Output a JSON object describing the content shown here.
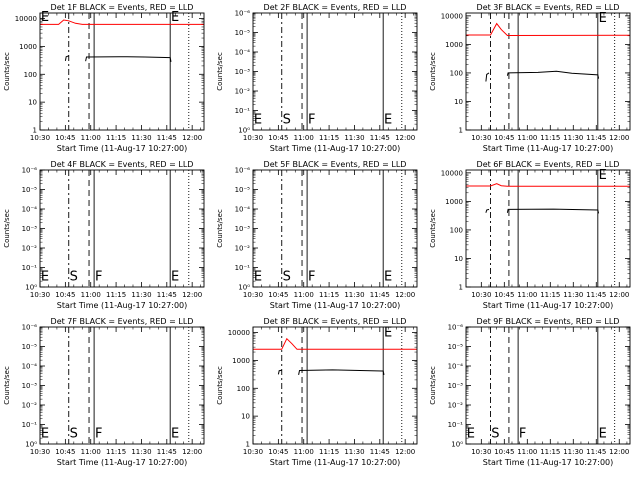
{
  "chart_data": [
    {
      "type": "line",
      "title": "Det 1F BLACK = Events, RED = LLD",
      "ylabel": "Counts/sec",
      "xlabel": "Start Time (11-Aug-17 10:27:00)",
      "x_ticks": [
        "10:30",
        "10:45",
        "11:00",
        "11:15",
        "11:30",
        "11:45",
        "12:00"
      ],
      "x_range_min": [
        3,
        100
      ],
      "y_log": true,
      "y_ticks": [
        "1",
        "10",
        "100",
        "1000",
        "10000"
      ],
      "y_range_exp": [
        0,
        4.2
      ],
      "markers": [
        {
          "type": "dashdot",
          "t": 20
        },
        {
          "type": "dashed",
          "t": 32
        },
        {
          "type": "solid",
          "t": 35
        },
        {
          "type": "solid",
          "t": 80
        },
        {
          "type": "dotted",
          "t": 91
        }
      ],
      "marker_labels": [
        {
          "text": "E",
          "t": 3.5,
          "exp": 4.05
        },
        {
          "text": "E",
          "t": 80.5,
          "exp": 4.05
        }
      ],
      "series": [
        {
          "color": "#ff0000",
          "points": [
            [
              3,
              3.79
            ],
            [
              14,
              3.79
            ],
            [
              17,
              3.95
            ],
            [
              20,
              3.92
            ],
            [
              24,
              3.83
            ],
            [
              28,
              3.79
            ],
            [
              35,
              3.79
            ],
            [
              100,
              3.79
            ]
          ]
        },
        {
          "color": "#000000",
          "segments": [
            [
              [
                18,
                2.48
              ],
              [
                18.5,
                2.63
              ],
              [
                20,
                2.66
              ]
            ],
            [
              [
                30,
                2.47
              ],
              [
                30.5,
                2.62
              ],
              [
                50,
                2.63
              ],
              [
                65,
                2.62
              ],
              [
                80,
                2.6
              ],
              [
                80.5,
                2.45
              ]
            ]
          ]
        }
      ]
    },
    {
      "type": "line",
      "title": "Det 2F BLACK = Events, RED = LLD",
      "ylabel": "Counts/sec",
      "xlabel": "Start Time (11-Aug-17 10:27:00)",
      "x_ticks": [
        "10:30",
        "10:45",
        "11:00",
        "11:15",
        "11:30",
        "11:45",
        "12:00"
      ],
      "x_range_min": [
        3,
        100
      ],
      "y_log": true,
      "y_ticks": [
        "10⁰",
        "10⁻¹",
        "10⁻²",
        "10⁻³",
        "10⁻⁴",
        "10⁻⁵",
        "10⁻⁶"
      ],
      "y_range_exp": [
        0,
        6
      ],
      "markers": [
        {
          "type": "dashdot",
          "t": 20
        },
        {
          "type": "dashed",
          "t": 32
        },
        {
          "type": "solid",
          "t": 35
        },
        {
          "type": "solid",
          "t": 80
        },
        {
          "type": "dotted",
          "t": 91
        }
      ],
      "marker_labels": [
        {
          "text": "E",
          "t": 3.5,
          "exp": 0.55
        },
        {
          "text": "S",
          "t": 20.5,
          "exp": 0.55
        },
        {
          "text": "F",
          "t": 35.5,
          "exp": 0.55
        },
        {
          "text": "E",
          "t": 80.5,
          "exp": 0.55
        }
      ],
      "series": []
    },
    {
      "type": "line",
      "title": "Det 3F BLACK = Events, RED = LLD",
      "ylabel": "Counts/sec",
      "xlabel": "Start Time (11-Aug-17 10:27:00)",
      "x_ticks": [
        "10:30",
        "10:45",
        "11:00",
        "11:15",
        "11:30",
        "11:45",
        "12:00"
      ],
      "x_range_min": [
        -7,
        100
      ],
      "y_log": true,
      "y_ticks": [
        "1",
        "10",
        "100",
        "1000",
        "10000"
      ],
      "y_range_exp": [
        0,
        4.1
      ],
      "markers": [
        {
          "type": "dashdot",
          "t": 9
        },
        {
          "type": "dashed",
          "t": 21
        },
        {
          "type": "solid",
          "t": 27
        },
        {
          "type": "solid",
          "t": 79
        },
        {
          "type": "dotted",
          "t": 90
        }
      ],
      "marker_labels": [
        {
          "text": "E",
          "t": 79.5,
          "exp": 3.92
        }
      ],
      "series": [
        {
          "color": "#ff0000",
          "points": [
            [
              -7,
              3.33
            ],
            [
              9,
              3.33
            ],
            [
              13,
              3.73
            ],
            [
              16,
              3.52
            ],
            [
              20,
              3.31
            ],
            [
              100,
              3.32
            ]
          ]
        },
        {
          "color": "#000000",
          "segments": [
            [
              [
                6,
                1.7
              ],
              [
                6.5,
                1.95
              ],
              [
                8,
                2.0
              ]
            ],
            [
              [
                20,
                1.9
              ],
              [
                20.5,
                2.0
              ],
              [
                40,
                2.02
              ],
              [
                52,
                2.06
              ],
              [
                62,
                1.99
              ],
              [
                79,
                1.93
              ],
              [
                79.5,
                1.8
              ]
            ]
          ]
        }
      ]
    },
    {
      "type": "line",
      "title": "Det 4F BLACK = Events, RED = LLD",
      "ylabel": "Counts/sec",
      "xlabel": "Start Time (11-Aug-17 10:27:00)",
      "x_ticks": [
        "10:30",
        "10:45",
        "11:00",
        "11:15",
        "11:30",
        "11:45",
        "12:00"
      ],
      "x_range_min": [
        3,
        100
      ],
      "y_log": true,
      "y_ticks": [
        "10⁰",
        "10⁻¹",
        "10⁻²",
        "10⁻³",
        "10⁻⁴",
        "10⁻⁵",
        "10⁻⁶"
      ],
      "y_range_exp": [
        0,
        6
      ],
      "markers": [
        {
          "type": "dashdot",
          "t": 20
        },
        {
          "type": "dashed",
          "t": 32
        },
        {
          "type": "solid",
          "t": 35
        },
        {
          "type": "solid",
          "t": 80
        },
        {
          "type": "dotted",
          "t": 91
        }
      ],
      "marker_labels": [
        {
          "text": "E",
          "t": 3.5,
          "exp": 0.55
        },
        {
          "text": "S",
          "t": 20.5,
          "exp": 0.55
        },
        {
          "text": "F",
          "t": 35.5,
          "exp": 0.55
        },
        {
          "text": "E",
          "t": 80.5,
          "exp": 0.55
        }
      ],
      "series": []
    },
    {
      "type": "line",
      "title": "Det 5F BLACK = Events, RED = LLD",
      "ylabel": "Counts/sec",
      "xlabel": "Start Time (11-Aug-17 10:27:00)",
      "x_ticks": [
        "10:30",
        "10:45",
        "11:00",
        "11:15",
        "11:30",
        "11:45",
        "12:00"
      ],
      "x_range_min": [
        3,
        100
      ],
      "y_log": true,
      "y_ticks": [
        "10⁰",
        "10⁻¹",
        "10⁻²",
        "10⁻³",
        "10⁻⁴",
        "10⁻⁵",
        "10⁻⁶"
      ],
      "y_range_exp": [
        0,
        6
      ],
      "markers": [
        {
          "type": "dashdot",
          "t": 20
        },
        {
          "type": "dashed",
          "t": 32
        },
        {
          "type": "solid",
          "t": 35
        },
        {
          "type": "solid",
          "t": 80
        },
        {
          "type": "dotted",
          "t": 91
        }
      ],
      "marker_labels": [
        {
          "text": "E",
          "t": 3.5,
          "exp": 0.55
        },
        {
          "text": "S",
          "t": 20.5,
          "exp": 0.55
        },
        {
          "text": "F",
          "t": 35.5,
          "exp": 0.55
        },
        {
          "text": "E",
          "t": 80.5,
          "exp": 0.55
        }
      ],
      "series": []
    },
    {
      "type": "line",
      "title": "Det 6F BLACK = Events, RED = LLD",
      "ylabel": "Counts/sec",
      "xlabel": "Start Time (11-Aug-17 10:27:00)",
      "x_ticks": [
        "10:30",
        "10:45",
        "11:00",
        "11:15",
        "11:30",
        "11:45",
        "12:00"
      ],
      "x_range_min": [
        -7,
        100
      ],
      "y_log": true,
      "y_ticks": [
        "1",
        "10",
        "100",
        "1000",
        "10000"
      ],
      "y_range_exp": [
        0,
        4.1
      ],
      "markers": [
        {
          "type": "dashdot",
          "t": 9
        },
        {
          "type": "dashed",
          "t": 21
        },
        {
          "type": "solid",
          "t": 27
        },
        {
          "type": "solid",
          "t": 79
        },
        {
          "type": "dotted",
          "t": 90
        }
      ],
      "marker_labels": [
        {
          "text": "E",
          "t": 79.5,
          "exp": 3.92
        }
      ],
      "series": [
        {
          "color": "#ff0000",
          "points": [
            [
              -7,
              3.54
            ],
            [
              9,
              3.54
            ],
            [
              13,
              3.62
            ],
            [
              16,
              3.55
            ],
            [
              20,
              3.53
            ],
            [
              100,
              3.53
            ]
          ]
        },
        {
          "color": "#000000",
          "segments": [
            [
              [
                6,
                2.6
              ],
              [
                6.5,
                2.7
              ],
              [
                8,
                2.72
              ]
            ],
            [
              [
                20,
                2.6
              ],
              [
                20.5,
                2.72
              ],
              [
                50,
                2.73
              ],
              [
                79,
                2.7
              ],
              [
                79.5,
                2.58
              ]
            ]
          ]
        }
      ]
    },
    {
      "type": "line",
      "title": "Det 7F BLACK = Events, RED = LLD",
      "ylabel": "Counts/sec",
      "xlabel": "Start Time (11-Aug-17 10:27:00)",
      "x_ticks": [
        "10:30",
        "10:45",
        "11:00",
        "11:15",
        "11:30",
        "11:45",
        "12:00"
      ],
      "x_range_min": [
        3,
        100
      ],
      "y_log": true,
      "y_ticks": [
        "10⁰",
        "10⁻¹",
        "10⁻²",
        "10⁻³",
        "10⁻⁴",
        "10⁻⁵",
        "10⁻⁶"
      ],
      "y_range_exp": [
        0,
        6
      ],
      "markers": [
        {
          "type": "dashdot",
          "t": 20
        },
        {
          "type": "dashed",
          "t": 32
        },
        {
          "type": "solid",
          "t": 35
        },
        {
          "type": "solid",
          "t": 80
        },
        {
          "type": "dotted",
          "t": 91
        }
      ],
      "marker_labels": [
        {
          "text": "E",
          "t": 3.5,
          "exp": 0.55
        },
        {
          "text": "S",
          "t": 20.5,
          "exp": 0.55
        },
        {
          "text": "F",
          "t": 35.5,
          "exp": 0.55
        },
        {
          "text": "E",
          "t": 80.5,
          "exp": 0.55
        }
      ],
      "series": []
    },
    {
      "type": "line",
      "title": "Det 8F BLACK = Events, RED = LLD",
      "ylabel": "Counts/sec",
      "xlabel": "Start Time (11-Aug-17 10:27:00)",
      "x_ticks": [
        "10:30",
        "10:45",
        "11:00",
        "11:15",
        "11:30",
        "11:45",
        "12:00"
      ],
      "x_range_min": [
        3,
        100
      ],
      "y_log": true,
      "y_ticks": [
        "1",
        "10",
        "100",
        "1000",
        "10000"
      ],
      "y_range_exp": [
        0,
        4.2
      ],
      "markers": [
        {
          "type": "dashdot",
          "t": 20
        },
        {
          "type": "dashed",
          "t": 32
        },
        {
          "type": "solid",
          "t": 35
        },
        {
          "type": "solid",
          "t": 80
        },
        {
          "type": "dotted",
          "t": 91
        }
      ],
      "marker_labels": [
        {
          "text": "E",
          "t": 80.5,
          "exp": 4.0
        }
      ],
      "series": [
        {
          "color": "#ff0000",
          "points": [
            [
              3,
              3.4
            ],
            [
              20,
              3.4
            ],
            [
              23,
              3.78
            ],
            [
              26,
              3.6
            ],
            [
              29,
              3.4
            ],
            [
              100,
              3.4
            ]
          ]
        },
        {
          "color": "#000000",
          "segments": [
            [
              [
                18,
                2.5
              ],
              [
                18.5,
                2.63
              ],
              [
                20,
                2.65
              ]
            ],
            [
              [
                30,
                2.48
              ],
              [
                30.5,
                2.64
              ],
              [
                50,
                2.66
              ],
              [
                80,
                2.62
              ],
              [
                80.5,
                2.48
              ]
            ]
          ]
        }
      ]
    },
    {
      "type": "line",
      "title": "Det 9F BLACK = Events, RED = LLD",
      "ylabel": "Counts/sec",
      "xlabel": "Start Time (11-Aug-17 10:27:00)",
      "x_ticks": [
        "10:30",
        "10:45",
        "11:00",
        "11:15",
        "11:30",
        "11:45",
        "12:00"
      ],
      "x_range_min": [
        -7,
        100
      ],
      "y_log": true,
      "y_ticks": [
        "10⁰",
        "10⁻¹",
        "10⁻²",
        "10⁻³",
        "10⁻⁴",
        "10⁻⁵",
        "10⁻⁶"
      ],
      "y_range_exp": [
        0,
        6
      ],
      "markers": [
        {
          "type": "dashdot",
          "t": 9
        },
        {
          "type": "dashed",
          "t": 21
        },
        {
          "type": "solid",
          "t": 27
        },
        {
          "type": "solid",
          "t": 79
        },
        {
          "type": "dotted",
          "t": 90
        }
      ],
      "marker_labels": [
        {
          "text": "E",
          "t": -6.5,
          "exp": 0.55
        },
        {
          "text": "S",
          "t": 9.5,
          "exp": 0.55
        },
        {
          "text": "F",
          "t": 27.5,
          "exp": 0.55
        },
        {
          "text": "E",
          "t": 79.5,
          "exp": 0.55
        }
      ],
      "series": []
    }
  ]
}
